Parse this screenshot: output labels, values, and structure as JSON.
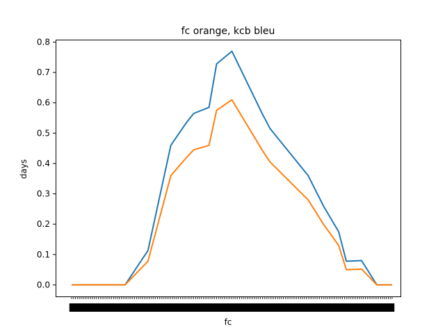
{
  "chart_data": {
    "type": "line",
    "title": "fc orange, kcb bleu",
    "xlabel": "fc",
    "ylabel": "days",
    "ylim": [
      -0.038,
      0.808
    ],
    "yticks": [
      0.0,
      0.1,
      0.2,
      0.3,
      0.4,
      0.5,
      0.6,
      0.7,
      0.8
    ],
    "ytick_labels": [
      "0.0",
      "0.1",
      "0.2",
      "0.3",
      "0.4",
      "0.5",
      "0.6",
      "0.7",
      "0.8"
    ],
    "xlim": [
      -2.1,
      43.1
    ],
    "grid": false,
    "x": [
      0,
      6,
      7,
      10,
      13,
      15,
      16,
      18,
      19,
      21,
      25,
      26,
      31,
      33,
      35,
      36,
      38,
      40,
      42
    ],
    "series": [
      {
        "color": "#1f77b4",
        "values": [
          0.0,
          0.0,
          0.0,
          0.113,
          0.46,
          0.533,
          0.565,
          0.585,
          0.728,
          0.77,
          0.563,
          0.515,
          0.36,
          0.26,
          0.175,
          0.078,
          0.08,
          0.0,
          0.0
        ]
      },
      {
        "color": "#ff7f0e",
        "values": [
          0.0,
          0.0,
          0.0,
          0.078,
          0.36,
          0.418,
          0.445,
          0.46,
          0.575,
          0.61,
          0.443,
          0.405,
          0.28,
          0.2,
          0.13,
          0.05,
          0.052,
          0.0,
          0.0
        ]
      }
    ]
  }
}
